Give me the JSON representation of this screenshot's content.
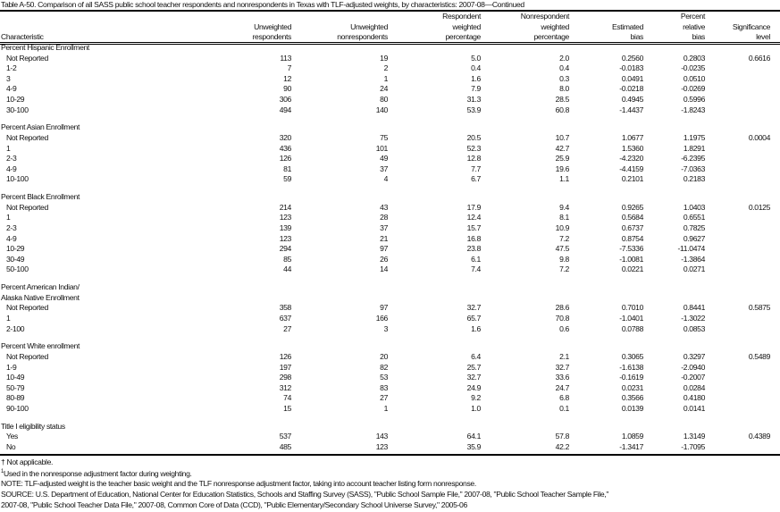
{
  "title": "Table A-50. Comparison of all SASS public school teacher respondents and nonrespondents in Texas with TLF-adjusted weights, by characteristics: 2007-08—Continued",
  "columns": [
    {
      "label": [
        "",
        "",
        "Characteristic"
      ]
    },
    {
      "label": [
        "",
        "Unweighted",
        "respondents"
      ]
    },
    {
      "label": [
        "",
        "Unweighted",
        "nonrespondents"
      ]
    },
    {
      "label": [
        "Respondent",
        "weighted",
        "percentage"
      ]
    },
    {
      "label": [
        "Nonrespondent",
        "weighted",
        "percentage"
      ]
    },
    {
      "label": [
        "",
        "Estimated",
        "bias"
      ]
    },
    {
      "label": [
        "Percent",
        "relative",
        "bias"
      ]
    },
    {
      "label": [
        "",
        "Significance",
        "level"
      ]
    }
  ],
  "groups": [
    {
      "label": [
        "Percent Hispanic Enrollment"
      ],
      "rows": [
        [
          "Not Reported",
          "113",
          "19",
          "5.0",
          "2.0",
          "0.2560",
          "0.2803",
          "0.6616"
        ],
        [
          "1-2",
          "7",
          "2",
          "0.4",
          "0.4",
          "-0.0183",
          "-0.0235",
          ""
        ],
        [
          "3",
          "12",
          "1",
          "1.6",
          "0.3",
          "0.0491",
          "0.0510",
          ""
        ],
        [
          "4-9",
          "90",
          "24",
          "7.9",
          "8.0",
          "-0.0218",
          "-0.0269",
          ""
        ],
        [
          "10-29",
          "306",
          "80",
          "31.3",
          "28.5",
          "0.4945",
          "0.5996",
          ""
        ],
        [
          "30-100",
          "494",
          "140",
          "53.9",
          "60.8",
          "-1.4437",
          "-1.8243",
          ""
        ]
      ]
    },
    {
      "label": [
        "Percent Asian Enrollment"
      ],
      "rows": [
        [
          "Not Reported",
          "320",
          "75",
          "20.5",
          "10.7",
          "1.0677",
          "1.1975",
          "0.0004"
        ],
        [
          "1",
          "436",
          "101",
          "52.3",
          "42.7",
          "1.5360",
          "1.8291",
          ""
        ],
        [
          "2-3",
          "126",
          "49",
          "12.8",
          "25.9",
          "-4.2320",
          "-6.2395",
          ""
        ],
        [
          "4-9",
          "81",
          "37",
          "7.7",
          "19.6",
          "-4.4159",
          "-7.0363",
          ""
        ],
        [
          "10-100",
          "59",
          "4",
          "6.7",
          "1.1",
          "0.2101",
          "0.2183",
          ""
        ]
      ]
    },
    {
      "label": [
        "Percent Black Enrollment"
      ],
      "rows": [
        [
          "Not Reported",
          "214",
          "43",
          "17.9",
          "9.4",
          "0.9265",
          "1.0403",
          "0.0125"
        ],
        [
          "1",
          "123",
          "28",
          "12.4",
          "8.1",
          "0.5684",
          "0.6551",
          ""
        ],
        [
          "2-3",
          "139",
          "37",
          "15.7",
          "10.9",
          "0.6737",
          "0.7825",
          ""
        ],
        [
          "4-9",
          "123",
          "21",
          "16.8",
          "7.2",
          "0.8754",
          "0.9627",
          ""
        ],
        [
          "10-29",
          "294",
          "97",
          "23.8",
          "47.5",
          "-7.5336",
          "-11.0474",
          ""
        ],
        [
          "30-49",
          "85",
          "26",
          "6.1",
          "9.8",
          "-1.0081",
          "-1.3864",
          ""
        ],
        [
          "50-100",
          "44",
          "14",
          "7.4",
          "7.2",
          "0.0221",
          "0.0271",
          ""
        ]
      ]
    },
    {
      "label": [
        "Percent American Indian/",
        "Alaska Native Enrollment"
      ],
      "rows": [
        [
          "Not Reported",
          "358",
          "97",
          "32.7",
          "28.6",
          "0.7010",
          "0.8441",
          "0.5875"
        ],
        [
          "1",
          "637",
          "166",
          "65.7",
          "70.8",
          "-1.0401",
          "-1.3022",
          ""
        ],
        [
          "2-100",
          "27",
          "3",
          "1.6",
          "0.6",
          "0.0788",
          "0.0853",
          ""
        ]
      ]
    },
    {
      "label": [
        "Percent White enrollment"
      ],
      "rows": [
        [
          "Not Reported",
          "126",
          "20",
          "6.4",
          "2.1",
          "0.3065",
          "0.3297",
          "0.5489"
        ],
        [
          "1-9",
          "197",
          "82",
          "25.7",
          "32.7",
          "-1.6138",
          "-2.0940",
          ""
        ],
        [
          "10-49",
          "298",
          "53",
          "32.7",
          "33.6",
          "-0.1619",
          "-0.2007",
          ""
        ],
        [
          "50-79",
          "312",
          "83",
          "24.9",
          "24.7",
          "0.0231",
          "0.0284",
          ""
        ],
        [
          "80-89",
          "74",
          "27",
          "9.2",
          "6.8",
          "0.3566",
          "0.4180",
          ""
        ],
        [
          "90-100",
          "15",
          "1",
          "1.0",
          "0.1",
          "0.0139",
          "0.0141",
          ""
        ]
      ]
    },
    {
      "label": [
        "Title I eligibility status"
      ],
      "rows": [
        [
          "Yes",
          "537",
          "143",
          "64.1",
          "57.8",
          "1.0859",
          "1.3149",
          "0.4389"
        ],
        [
          "No",
          "485",
          "123",
          "35.9",
          "42.2",
          "-1.3417",
          "-1.7095",
          ""
        ]
      ]
    }
  ],
  "footnotes": [
    "† Not applicable.",
    "Used in the nonresponse adjustment factor during weighting.",
    "NOTE: TLF-adjusted weight is the teacher basic weight and the TLF nonresponse adjustment factor, taking into account teacher listing form nonresponse.",
    "SOURCE: U.S. Department of Education, National Center for Education Statistics, Schools and Staffing Survey (SASS), \"Public School Sample File,\" 2007-08, \"Public School Teacher Sample File,\"",
    "2007-08, \"Public School Teacher Data File,\" 2007-08, Common Core of Data (CCD), \"Public Elementary/Secondary School Universe Survey,\" 2005-06"
  ],
  "footnote_marker": "1"
}
